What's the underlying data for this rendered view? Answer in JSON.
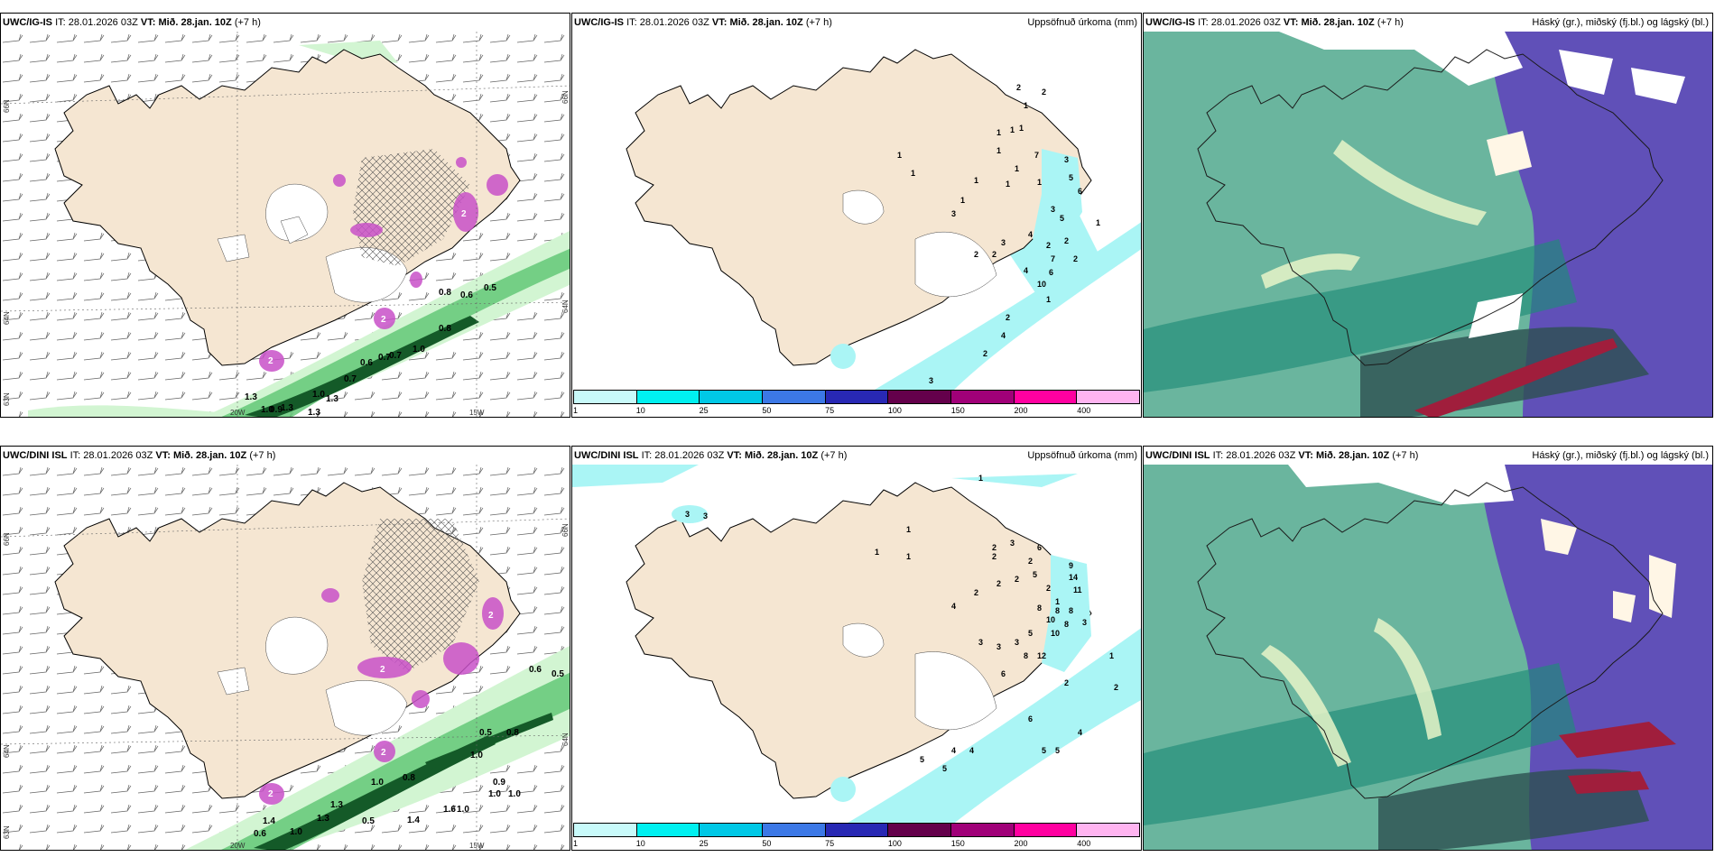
{
  "panels": {
    "p1": {
      "model": "UWC/IG-IS",
      "it_label": "IT:",
      "it_value": "28.01.2026 03Z",
      "vt_label": "VT:",
      "vt_value": "Mið. 28.jan. 10Z",
      "lead": "(+7 h)",
      "right_title": "",
      "lon_labels": [
        "20W",
        "15W"
      ],
      "lat_labels": [
        "66N",
        "64N",
        "63N"
      ],
      "lat_labels_right": [
        "66N",
        "64N"
      ],
      "wave_labels": [
        "0.8",
        "0.6",
        "0.5",
        "0.8",
        "1.0",
        "0.7",
        "0.7",
        "0.6",
        "0.7",
        "1.0",
        "1.3",
        "1.3",
        "1.3",
        "0.9",
        "1.3",
        "1.0"
      ],
      "snow_labels": [
        "2",
        "2",
        "2"
      ]
    },
    "p2": {
      "model": "UWC/IG-IS",
      "it_label": "IT:",
      "it_value": "28.01.2026 03Z",
      "vt_label": "VT:",
      "vt_value": "Mið. 28.jan. 10Z",
      "lead": "(+7 h)",
      "right_title": "Uppsöfnuð úrkoma (mm)",
      "precip_labels": [
        "2",
        "2",
        "1",
        "1",
        "1",
        "1",
        "1",
        "7",
        "1",
        "1",
        "1",
        "3",
        "5",
        "6",
        "1",
        "1",
        "3",
        "1",
        "3",
        "5",
        "4",
        "2",
        "2",
        "7",
        "2",
        "4",
        "6",
        "10",
        "1",
        "2",
        "2",
        "4",
        "2",
        "3",
        "2",
        "5",
        "2",
        "3",
        "1",
        "1"
      ]
    },
    "p3": {
      "model": "UWC/IG-IS",
      "it_label": "IT:",
      "it_value": "28.01.2026 03Z",
      "vt_label": "VT:",
      "vt_value": "Mið. 28.jan. 10Z",
      "lead": "(+7 h)",
      "right_title": "Háský (gr.), miðský (fj.bl.) og lágský (bl.)"
    },
    "p4": {
      "model": "UWC/DINI ISL",
      "it_label": "IT:",
      "it_value": "28.01.2026 03Z",
      "vt_label": "VT:",
      "vt_value": "Mið. 28.jan. 10Z",
      "lead": "(+7 h)",
      "right_title": "",
      "lon_labels": [
        "20W",
        "15W"
      ],
      "lat_labels": [
        "66N",
        "64N",
        "63N"
      ],
      "lat_labels_right": [
        "66N",
        "64N"
      ],
      "wave_labels": [
        "0.6",
        "0.5",
        "0.5",
        "0.8",
        "1.0",
        "0.8",
        "1.0",
        "0.9",
        "1.0",
        "1.0",
        "1.6",
        "1.3",
        "0.5",
        "1.4",
        "1.0",
        "0.6",
        "1.0",
        "1.4",
        "1.3"
      ],
      "snow_labels": [
        "2",
        "2",
        "2",
        "2"
      ]
    },
    "p5": {
      "model": "UWC/DINI ISL",
      "it_label": "IT:",
      "it_value": "28.01.2026 03Z",
      "vt_label": "VT:",
      "vt_value": "Mið. 28.jan. 10Z",
      "lead": "(+7 h)",
      "right_title": "Uppsöfnuð úrkoma (mm)",
      "precip_labels": [
        "1",
        "3",
        "3",
        "1",
        "1",
        "1",
        "2",
        "3",
        "2",
        "6",
        "2",
        "9",
        "5",
        "14",
        "2",
        "2",
        "2",
        "11",
        "4",
        "1",
        "2",
        "10",
        "8",
        "8",
        "8",
        "3",
        "8",
        "10",
        "5",
        "3",
        "3",
        "3",
        "8",
        "12",
        "6",
        "1",
        "2",
        "6",
        "5",
        "4",
        "4",
        "4",
        "5",
        "5",
        "5",
        "2"
      ]
    },
    "p6": {
      "model": "UWC/DINI ISL",
      "it_label": "IT:",
      "it_value": "28.01.2026 03Z",
      "vt_label": "VT:",
      "vt_value": "Mið. 28.jan. 10Z",
      "lead": "(+7 h)",
      "right_title": "Háský (gr.), miðský (fj.bl.) og lágský (bl.)"
    }
  },
  "colorbar": {
    "labels": [
      "1",
      "10",
      "25",
      "50",
      "75",
      "100",
      "150",
      "200",
      "400",
      ""
    ],
    "colors": [
      "#c8fafa",
      "#00f0f0",
      "#00c8e6",
      "#3c78e6",
      "#2828b4",
      "#64004b",
      "#a00078",
      "#ff00a0",
      "#ffb4f0",
      "#ffffff"
    ]
  },
  "colors": {
    "land": "#f5e6d2",
    "sea_wave_light": "#d2f5d2",
    "sea_wave_mid": "#64c878",
    "sea_wave_dark": "#145a28",
    "snow_magenta": "#c850c8",
    "precip_cyan": "#aaf5f5",
    "cloud_green": "#6ab59e",
    "cloud_teal": "#1e8c78",
    "cloud_purple": "#6050b8",
    "cloud_dark": "#2d5050",
    "cloud_red": "#a01e3c"
  }
}
